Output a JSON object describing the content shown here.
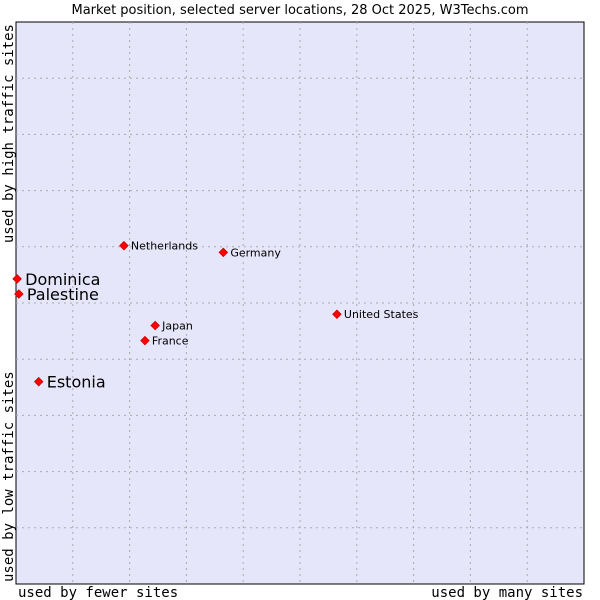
{
  "chart_data": {
    "type": "scatter",
    "title": "Market position, selected server locations, 28 Oct 2025, W3Techs.com",
    "xlabel_left": "used by fewer sites",
    "xlabel_right": "used by many sites",
    "ylabel_bottom": "used by low traffic sites",
    "ylabel_top": "used by high traffic sites",
    "xlim": [
      0,
      100
    ],
    "ylim": [
      0,
      100
    ],
    "grid": true,
    "colors": {
      "plot_bg": "#e6e6fa",
      "grid": "#aaaaaa",
      "point": "#ff0000",
      "point_outline": "#cc0000"
    },
    "points": [
      {
        "name": "Dominica",
        "x": 0.2,
        "y": 54.3,
        "emphasis": true
      },
      {
        "name": "Palestine",
        "x": 0.5,
        "y": 51.6,
        "emphasis": true
      },
      {
        "name": "Estonia",
        "x": 4.0,
        "y": 36.0,
        "emphasis": true
      },
      {
        "name": "Netherlands",
        "x": 19.0,
        "y": 60.2,
        "emphasis": false
      },
      {
        "name": "Germany",
        "x": 36.5,
        "y": 59.0,
        "emphasis": false
      },
      {
        "name": "Japan",
        "x": 24.5,
        "y": 46.0,
        "emphasis": false
      },
      {
        "name": "France",
        "x": 22.7,
        "y": 43.3,
        "emphasis": false
      },
      {
        "name": "United States",
        "x": 56.5,
        "y": 48.0,
        "emphasis": false
      }
    ]
  }
}
